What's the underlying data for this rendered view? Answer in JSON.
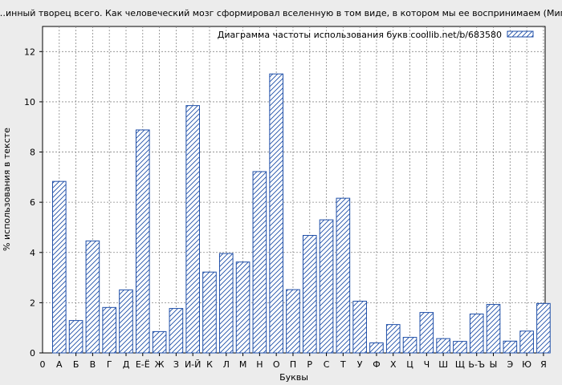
{
  "chart_data": {
    "type": "bar",
    "title": "…инный творец всего. Как человеческий мозг сформировал вселенную в том виде, в котором мы ее воспринимаем (Мигель Ни",
    "legend": "Диаграмма частоты использования букв coollib.net/b/683580",
    "legend_position": "top-right",
    "xlabel": "Буквы",
    "ylabel": "% использования в тексте",
    "ylim": [
      0,
      13
    ],
    "yticks": [
      0,
      2,
      4,
      6,
      8,
      10,
      12
    ],
    "x_origin_label": "0",
    "grid": true,
    "colors": {
      "bar_stroke": "#1f4fa8",
      "background": "#ececec",
      "plot": "#ffffff"
    },
    "categories": [
      "А",
      "Б",
      "В",
      "Г",
      "Д",
      "Е-Ё",
      "Ж",
      "З",
      "И-Й",
      "К",
      "Л",
      "М",
      "Н",
      "О",
      "П",
      "Р",
      "С",
      "Т",
      "У",
      "Ф",
      "Х",
      "Ц",
      "Ч",
      "Ш",
      "Щ",
      "Ь-Ъ",
      "Ы",
      "Э",
      "Ю",
      "Я"
    ],
    "values": [
      6.83,
      1.29,
      4.46,
      1.81,
      2.51,
      8.88,
      0.85,
      1.77,
      9.85,
      3.22,
      3.96,
      3.62,
      7.22,
      11.11,
      2.52,
      4.68,
      5.3,
      6.16,
      2.06,
      0.4,
      1.13,
      0.62,
      1.61,
      0.57,
      0.46,
      1.55,
      1.93,
      0.47,
      0.87,
      1.97
    ]
  }
}
